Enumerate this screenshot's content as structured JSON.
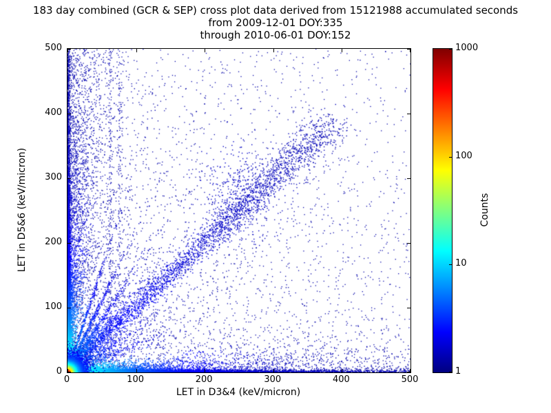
{
  "chart_data": {
    "type": "scatter",
    "title": "183 day combined (GCR & SEP) cross plot data derived from 15121988 accumulated seconds",
    "subtitle1": "from 2009-12-01 DOY:335",
    "subtitle2": "through 2010-06-01 DOY:152",
    "xlabel": "LET in D3&4 (keV/micron)",
    "ylabel": "LET in D5&6 (keV/micron)",
    "xlim": [
      0,
      500
    ],
    "ylim": [
      0,
      500
    ],
    "xticks": [
      0,
      100,
      200,
      300,
      400,
      500
    ],
    "yticks": [
      0,
      100,
      200,
      300,
      400,
      500
    ],
    "grid": false,
    "legend": false,
    "colorbar": {
      "label": "Counts",
      "scale": "log",
      "min": 1,
      "max": 1000,
      "ticks": [
        1000,
        100,
        10,
        1
      ],
      "colormap": "jet",
      "low_color": "#000080",
      "high_color": "#800000"
    },
    "seed": 20091201,
    "features": [
      {
        "kind": "field",
        "count": 2600,
        "pow": 1.7
      },
      {
        "kind": "field",
        "count": 1600,
        "pow": 2.4
      },
      {
        "kind": "upperleft",
        "count": 1300,
        "spread": 34
      },
      {
        "kind": "vstreak",
        "count": 170,
        "x0": 62,
        "sigma": 1.5
      },
      {
        "kind": "vstreak",
        "count": 130,
        "x0": 76,
        "sigma": 1.5
      },
      {
        "kind": "diag",
        "count": 2600,
        "tmin": 25,
        "tmax": 385,
        "spread0": 4,
        "spread1": 16,
        "camp": 0.15,
        "cdecay": 150
      },
      {
        "kind": "blob",
        "count": 380,
        "x": 250,
        "y": 275,
        "sx": 28,
        "sy": 34
      },
      {
        "kind": "ray",
        "count": 450,
        "slope": 3.2,
        "len": 50,
        "sigma": 2
      },
      {
        "kind": "ray",
        "count": 550,
        "slope": 2.2,
        "len": 65,
        "sigma": 2
      },
      {
        "kind": "ray",
        "count": 650,
        "slope": 1.6,
        "len": 80,
        "sigma": 2.5
      },
      {
        "kind": "ray",
        "count": 500,
        "slope": 1.25,
        "len": 90,
        "sigma": 2.5
      },
      {
        "kind": "ray",
        "count": 420,
        "slope": 0.65,
        "len": 95,
        "sigma": 2.5
      },
      {
        "kind": "ray",
        "count": 380,
        "slope": 0.4,
        "len": 110,
        "sigma": 2.5
      },
      {
        "kind": "band-x",
        "count": 6500,
        "tau": 160,
        "sigma": 2.2,
        "tail_frac": 0.3,
        "tail_base": 4,
        "tail_grow": 0.05,
        "camp": 0.45,
        "cdecay": 110
      },
      {
        "kind": "band-y",
        "count": 6500,
        "tau": 160,
        "sigma": 2.2,
        "tail_frac": 0.3,
        "tail_base": 4,
        "tail_grow": 0.05,
        "camp": 0.45,
        "cdecay": 110
      },
      {
        "kind": "core",
        "count": 9000,
        "scale": 8
      }
    ]
  }
}
